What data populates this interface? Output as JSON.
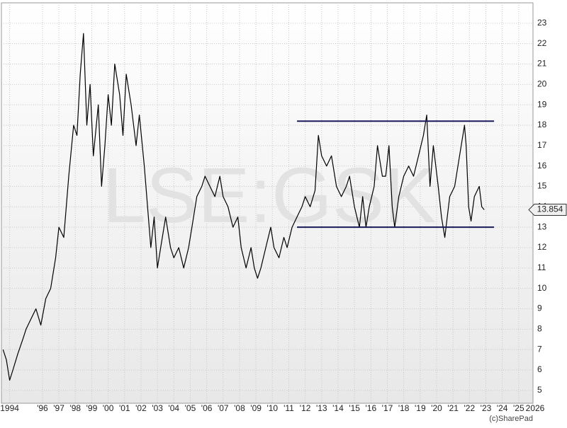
{
  "chart_data": {
    "type": "line",
    "watermark": "LSE:GSK",
    "credit": "(c)SharePad",
    "color": "#000000",
    "grid": true,
    "xlim": [
      1993.5,
      2026
    ],
    "ylim": [
      4.37,
      24.0
    ],
    "xticks": [
      {
        "value": 1994,
        "label": "1994"
      },
      {
        "value": 1996,
        "label": "'96"
      },
      {
        "value": 1997,
        "label": "'97"
      },
      {
        "value": 1998,
        "label": "'98"
      },
      {
        "value": 1999,
        "label": "'99"
      },
      {
        "value": 2000,
        "label": "'00"
      },
      {
        "value": 2001,
        "label": "'01"
      },
      {
        "value": 2002,
        "label": "'02"
      },
      {
        "value": 2003,
        "label": "'03"
      },
      {
        "value": 2004,
        "label": "'04"
      },
      {
        "value": 2005,
        "label": "'05"
      },
      {
        "value": 2006,
        "label": "'06"
      },
      {
        "value": 2007,
        "label": "'07"
      },
      {
        "value": 2008,
        "label": "'08"
      },
      {
        "value": 2009,
        "label": "'09"
      },
      {
        "value": 2010,
        "label": "'10"
      },
      {
        "value": 2011,
        "label": "'11"
      },
      {
        "value": 2012,
        "label": "'12"
      },
      {
        "value": 2013,
        "label": "'13"
      },
      {
        "value": 2014,
        "label": "'14"
      },
      {
        "value": 2015,
        "label": "'15"
      },
      {
        "value": 2016,
        "label": "'16"
      },
      {
        "value": 2017,
        "label": "'17"
      },
      {
        "value": 2018,
        "label": "'18"
      },
      {
        "value": 2019,
        "label": "'19"
      },
      {
        "value": 2020,
        "label": "'20"
      },
      {
        "value": 2021,
        "label": "'21"
      },
      {
        "value": 2022,
        "label": "'22"
      },
      {
        "value": 2023,
        "label": "'23"
      },
      {
        "value": 2024,
        "label": "'24"
      },
      {
        "value": 2025,
        "label": "'25"
      },
      {
        "value": 2026,
        "label": "2026"
      }
    ],
    "yticks": [
      5,
      6,
      7,
      8,
      9,
      10,
      11,
      12,
      13,
      14,
      15,
      16,
      17,
      18,
      19,
      20,
      21,
      22,
      23
    ],
    "levels": [
      {
        "value": 18.2,
        "x": [
          2011.5,
          2023.5
        ],
        "color": "#1a1a5a"
      },
      {
        "value": 13.0,
        "x": [
          2011.5,
          2023.5
        ],
        "color": "#1a1a5a"
      }
    ],
    "x": [
      1993.6,
      1993.8,
      1994.0,
      1994.2,
      1994.5,
      1994.8,
      1995.0,
      1995.3,
      1995.6,
      1995.9,
      1996.2,
      1996.5,
      1996.8,
      1997.0,
      1997.3,
      1997.6,
      1997.9,
      1998.1,
      1998.3,
      1998.5,
      1998.7,
      1998.9,
      1999.1,
      1999.4,
      1999.6,
      1999.8,
      2000.0,
      2000.2,
      2000.4,
      2000.7,
      2000.9,
      2001.1,
      2001.4,
      2001.7,
      2001.9,
      2002.2,
      2002.4,
      2002.6,
      2002.8,
      2003.0,
      2003.2,
      2003.5,
      2003.8,
      2004.0,
      2004.3,
      2004.6,
      2004.9,
      2005.1,
      2005.4,
      2005.7,
      2005.9,
      2006.2,
      2006.5,
      2006.8,
      2007.0,
      2007.3,
      2007.6,
      2007.9,
      2008.1,
      2008.4,
      2008.7,
      2008.9,
      2009.1,
      2009.3,
      2009.6,
      2009.9,
      2010.1,
      2010.4,
      2010.7,
      2010.9,
      2011.2,
      2011.5,
      2011.8,
      2012.0,
      2012.3,
      2012.6,
      2012.8,
      2013.0,
      2013.3,
      2013.6,
      2013.9,
      2014.2,
      2014.5,
      2014.7,
      2015.0,
      2015.3,
      2015.5,
      2015.7,
      2015.9,
      2016.2,
      2016.4,
      2016.7,
      2016.9,
      2017.1,
      2017.3,
      2017.45,
      2017.7,
      2018.0,
      2018.3,
      2018.6,
      2018.9,
      2019.2,
      2019.4,
      2019.6,
      2019.8,
      2020.1,
      2020.3,
      2020.5,
      2020.8,
      2021.1,
      2021.4,
      2021.7,
      2021.8,
      2021.95,
      2022.1,
      2022.3,
      2022.6,
      2022.75,
      2022.9
    ],
    "values": [
      7.0,
      6.5,
      5.5,
      6.0,
      6.8,
      7.5,
      8.0,
      8.5,
      9.0,
      8.2,
      9.5,
      10.0,
      11.5,
      13.0,
      12.5,
      15.5,
      18.0,
      17.5,
      20.5,
      22.5,
      18.0,
      20.0,
      16.5,
      19.0,
      15.0,
      17.0,
      19.5,
      18.0,
      21.0,
      19.5,
      17.5,
      20.5,
      19.0,
      17.0,
      18.5,
      16.0,
      14.0,
      12.0,
      13.5,
      11.0,
      12.0,
      13.5,
      12.0,
      11.5,
      12.0,
      11.0,
      12.0,
      13.0,
      14.5,
      15.0,
      15.5,
      15.0,
      14.5,
      15.5,
      14.5,
      14.0,
      13.0,
      13.5,
      12.0,
      11.0,
      12.0,
      11.0,
      10.5,
      11.0,
      12.0,
      13.0,
      12.0,
      11.5,
      12.5,
      12.0,
      13.0,
      13.5,
      14.0,
      14.5,
      14.0,
      14.8,
      17.5,
      16.5,
      16.0,
      16.5,
      15.0,
      14.5,
      15.0,
      15.5,
      14.0,
      13.0,
      14.5,
      13.0,
      14.0,
      15.0,
      17.0,
      15.5,
      15.5,
      17.0,
      14.0,
      13.0,
      14.5,
      15.5,
      16.0,
      15.5,
      16.5,
      17.5,
      18.5,
      15.0,
      17.0,
      15.0,
      13.5,
      12.5,
      14.5,
      15.0,
      16.5,
      18.0,
      17.0,
      14.0,
      13.3,
      14.5,
      15.0,
      14.0,
      13.854
    ]
  }
}
